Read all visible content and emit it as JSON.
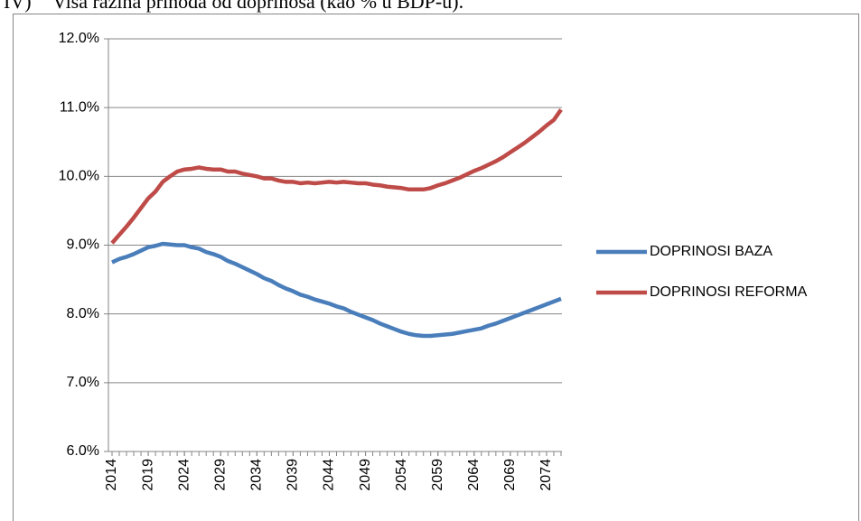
{
  "heading": {
    "number": "IV)",
    "text": "Viša razina prihoda od doprinosa (kao % u BDP-u)."
  },
  "chart_data": {
    "type": "line",
    "x": [
      2014,
      2015,
      2016,
      2017,
      2018,
      2019,
      2020,
      2021,
      2022,
      2023,
      2024,
      2025,
      2026,
      2027,
      2028,
      2029,
      2030,
      2031,
      2032,
      2033,
      2034,
      2035,
      2036,
      2037,
      2038,
      2039,
      2040,
      2041,
      2042,
      2043,
      2044,
      2045,
      2046,
      2047,
      2048,
      2049,
      2050,
      2051,
      2052,
      2053,
      2054,
      2055,
      2056,
      2057,
      2058,
      2059,
      2060,
      2061,
      2062,
      2063,
      2064,
      2065,
      2066,
      2067,
      2068,
      2069,
      2070,
      2071,
      2072,
      2073,
      2074,
      2075,
      2076
    ],
    "xlim": [
      2014,
      2076
    ],
    "xticks": [
      2014,
      2019,
      2024,
      2029,
      2034,
      2039,
      2044,
      2049,
      2054,
      2059,
      2064,
      2069,
      2074
    ],
    "ylim": [
      6,
      12
    ],
    "yticks": [
      {
        "value": 6,
        "label": "6.0%"
      },
      {
        "value": 7,
        "label": "7.0%"
      },
      {
        "value": 8,
        "label": "8.0%"
      },
      {
        "value": 9,
        "label": "9.0%"
      },
      {
        "value": 10,
        "label": "10.0%"
      },
      {
        "value": 11,
        "label": "11.0%"
      },
      {
        "value": 12,
        "label": "12.0%"
      }
    ],
    "grid": true,
    "legend": "right",
    "series": [
      {
        "name": "DOPRINOSI BAZA",
        "color": "#4a7ebb",
        "values": [
          8.75,
          8.8,
          8.83,
          8.87,
          8.92,
          8.97,
          8.99,
          9.02,
          9.01,
          9.0,
          9.0,
          8.97,
          8.95,
          8.9,
          8.87,
          8.83,
          8.77,
          8.73,
          8.68,
          8.63,
          8.58,
          8.52,
          8.48,
          8.42,
          8.37,
          8.33,
          8.28,
          8.25,
          8.21,
          8.18,
          8.15,
          8.11,
          8.08,
          8.03,
          7.99,
          7.95,
          7.91,
          7.86,
          7.82,
          7.78,
          7.74,
          7.71,
          7.69,
          7.68,
          7.68,
          7.69,
          7.7,
          7.71,
          7.73,
          7.75,
          7.77,
          7.79,
          7.83,
          7.86,
          7.9,
          7.94,
          7.98,
          8.02,
          8.06,
          8.1,
          8.14,
          8.18,
          8.22
        ]
      },
      {
        "name": "DOPRINOSI REFORMA",
        "color": "#be4b48",
        "values": [
          9.03,
          9.15,
          9.27,
          9.4,
          9.54,
          9.68,
          9.78,
          9.92,
          10.0,
          10.07,
          10.1,
          10.11,
          10.13,
          10.11,
          10.1,
          10.1,
          10.07,
          10.07,
          10.04,
          10.02,
          10.0,
          9.97,
          9.97,
          9.94,
          9.92,
          9.92,
          9.9,
          9.91,
          9.9,
          9.91,
          9.92,
          9.91,
          9.92,
          9.91,
          9.9,
          9.9,
          9.88,
          9.87,
          9.85,
          9.84,
          9.83,
          9.81,
          9.81,
          9.81,
          9.83,
          9.87,
          9.9,
          9.94,
          9.98,
          10.03,
          10.08,
          10.12,
          10.17,
          10.22,
          10.28,
          10.35,
          10.42,
          10.49,
          10.57,
          10.65,
          10.74,
          10.82,
          10.97
        ]
      }
    ]
  }
}
